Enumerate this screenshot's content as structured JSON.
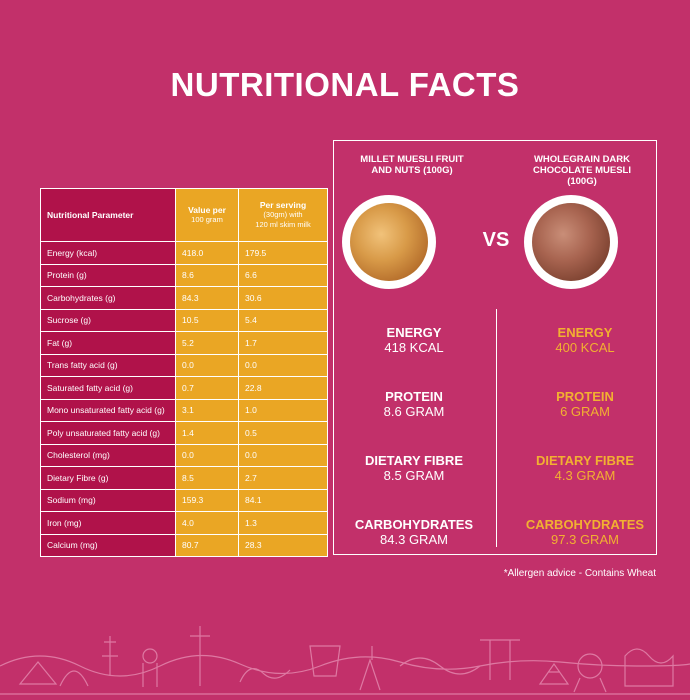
{
  "title": "NUTRITIONAL FACTS",
  "table": {
    "headers": {
      "param": "Nutritional Parameter",
      "per100_a": "Value per",
      "per100_b": "100 gram",
      "serving_a": "Per serving",
      "serving_b": "(30gm) with",
      "serving_c": "120 ml skim milk"
    },
    "rows": [
      {
        "name": "Energy (kcal)",
        "per100": "418.0",
        "serving": "179.5"
      },
      {
        "name": "Protein (g)",
        "per100": "8.6",
        "serving": "6.6"
      },
      {
        "name": "Carbohydrates (g)",
        "per100": "84.3",
        "serving": "30.6"
      },
      {
        "name": "Sucrose (g)",
        "per100": "10.5",
        "serving": "5.4"
      },
      {
        "name": "Fat (g)",
        "per100": "5.2",
        "serving": "1.7"
      },
      {
        "name": "Trans fatty acid (g)",
        "per100": "0.0",
        "serving": "0.0"
      },
      {
        "name": "Saturated fatty acid (g)",
        "per100": "0.7",
        "serving": "22.8"
      },
      {
        "name": "Mono unsaturated fatty acid (g)",
        "per100": "3.1",
        "serving": "1.0"
      },
      {
        "name": "Poly unsaturated fatty acid (g)",
        "per100": "1.4",
        "serving": "0.5"
      },
      {
        "name": "Cholesterol (mg)",
        "per100": "0.0",
        "serving": "0.0"
      },
      {
        "name": "Dietary Fibre (g)",
        "per100": "8.5",
        "serving": "2.7"
      },
      {
        "name": "Sodium (mg)",
        "per100": "159.3",
        "serving": "84.1"
      },
      {
        "name": "Iron (mg)",
        "per100": "4.0",
        "serving": "1.3"
      },
      {
        "name": "Calcium (mg)",
        "per100": "80.7",
        "serving": "28.3"
      }
    ]
  },
  "comparison": {
    "vs": "VS",
    "left": {
      "name_line1": "MILLET MUESLI FRUIT",
      "name_line2": "AND NUTS (100G)",
      "energy_label": "ENERGY",
      "energy": "418 KCAL",
      "protein_label": "PROTEIN",
      "protein": "8.6 GRAM",
      "fibre_label": "DIETARY FIBRE",
      "fibre": "8.5 GRAM",
      "carb_label": "CARBOHYDRATES",
      "carb": "84.3 GRAM"
    },
    "right": {
      "name_line1": "WHOLEGRAIN DARK",
      "name_line2": "CHOCOLATE MUESLI",
      "name_line3": "(100G)",
      "energy_label": "ENERGY",
      "energy": "400 KCAL",
      "protein_label": "PROTEIN",
      "protein": "6 GRAM",
      "fibre_label": "DIETARY FIBRE",
      "fibre": "4.3 GRAM",
      "carb_label": "CARBOHYDRATES",
      "carb": "97.3 GRAM"
    }
  },
  "allergen": "*Allergen advice - Contains Wheat",
  "colors": {
    "background": "#c2306a",
    "table_param": "#b0124a",
    "table_value": "#eaa624",
    "accent_text": "#f2b031"
  }
}
